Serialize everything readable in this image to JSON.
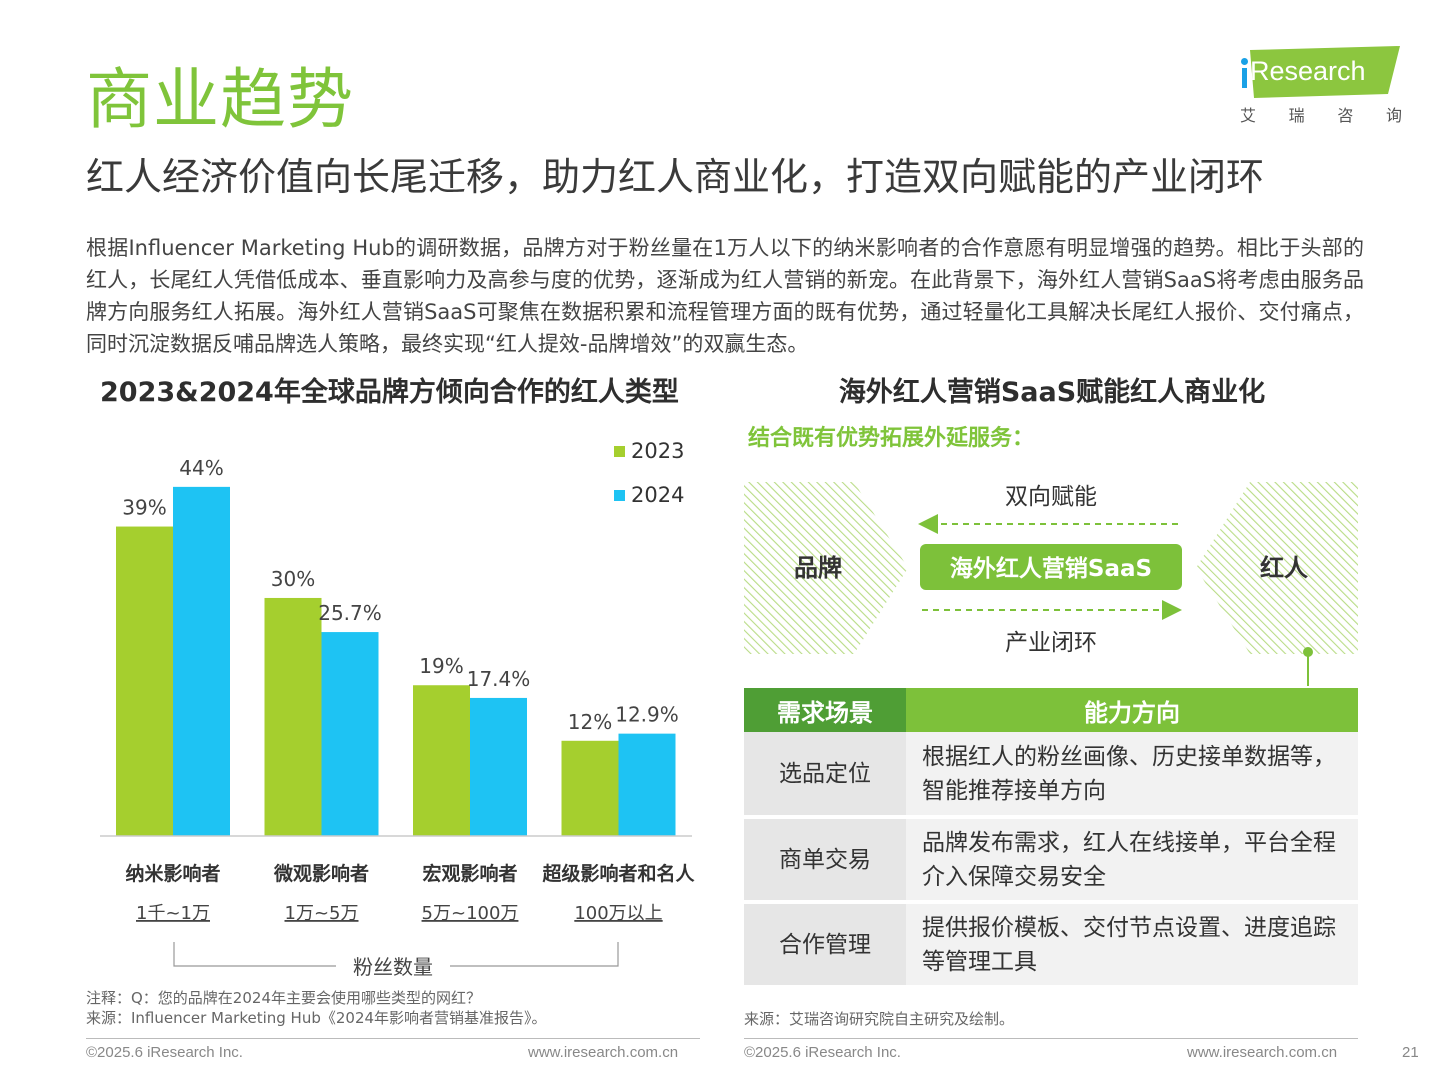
{
  "page_title": "商业趋势",
  "logo": {
    "brand": "Research",
    "chinese": [
      "艾",
      "瑞",
      "咨",
      "询"
    ]
  },
  "subtitle": "红人经济价值向长尾迁移，助力红人商业化，打造双向赋能的产业闭环",
  "intro": "根据Influencer Marketing Hub的调研数据，品牌方对于粉丝量在1万人以下的纳米影响者的合作意愿有明显增强的趋势。相比于头部的红人，长尾红人凭借低成本、垂直影响力及高参与度的优势，逐渐成为红人营销的新宠。在此背景下，海外红人营销SaaS将考虑由服务品牌方向服务红人拓展。海外红人营销SaaS可聚焦在数据积累和流程管理方面的既有优势，通过轻量化工具解决长尾红人报价、交付痛点，同时沉淀数据反哺品牌选人策略，最终实现“红人提效-品牌增效”的双赢生态。",
  "chart_data": {
    "type": "bar",
    "title": "2023&2024年全球品牌方倾向合作的红人类型",
    "categories": [
      "纳米影响者",
      "微观影响者",
      "宏观影响者",
      "超级影响者和名人"
    ],
    "category_ranges": [
      "1千~1万",
      "1万~5万",
      "5万~100万",
      "100万以上"
    ],
    "xlabel": "粉丝数量",
    "series": [
      {
        "name": "2023",
        "values": [
          39,
          30,
          19,
          12
        ],
        "labels": [
          "39%",
          "30%",
          "19%",
          "12%"
        ],
        "color": "#a5cf2e"
      },
      {
        "name": "2024",
        "values": [
          44,
          25.7,
          17.4,
          12.9
        ],
        "labels": [
          "44%",
          "25.7%",
          "17.4%",
          "12.9%"
        ],
        "color": "#1ec3f3"
      }
    ],
    "ylim": [
      0,
      46
    ],
    "legend_position": "top-right",
    "grid": false
  },
  "right_panel": {
    "title": "海外红人营销SaaS赋能红人商业化",
    "subheading": "结合既有优势拓展外延服务：",
    "flow": {
      "left": "品牌",
      "center": "海外红人营销SaaS",
      "right": "红人",
      "top_label": "双向赋能",
      "bottom_label": "产业闭环"
    },
    "table": {
      "headers": [
        "需求场景",
        "能力方向"
      ],
      "rows": [
        {
          "scene": "选品定位",
          "ability": "根据红人的粉丝画像、历史接单数据等，智能推荐接单方向"
        },
        {
          "scene": "商单交易",
          "ability": "品牌发布需求，红人在线接单，平台全程介入保障交易安全"
        },
        {
          "scene": "合作管理",
          "ability": "提供报价模板、交付节点设置、进度追踪等管理工具"
        }
      ]
    }
  },
  "notes": {
    "note": "注释：Q：您的品牌在2024年主要会使用哪些类型的网红？",
    "source_left": "来源：Influencer Marketing Hub《2024年影响者营销基准报告》。",
    "source_right": "来源：艾瑞咨询研究院自主研究及绘制。"
  },
  "footer": {
    "copyright_left": "©2025.6 iResearch Inc.",
    "url_left": "www.iresearch.com.cn",
    "copyright_right": "©2025.6 iResearch Inc.",
    "url_right": "www.iresearch.com.cn",
    "page_number": "21"
  },
  "colors": {
    "brand_green": "#7fc43a",
    "dark_green": "#4f9e35",
    "bar_2023": "#a5cf2e",
    "bar_2024": "#1ec3f3",
    "logo_blue": "#1aa1e6"
  }
}
